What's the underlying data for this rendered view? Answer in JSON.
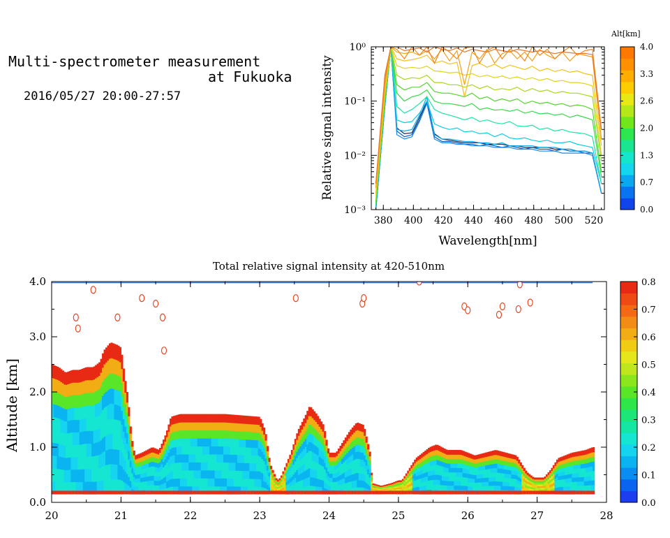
{
  "header": {
    "title_line1": "Multi-spectrometer measurement",
    "title_line2": "at Fukuoka",
    "date_range": "2016/05/27 20:00-27:57"
  },
  "chart_data": [
    {
      "type": "line",
      "xlabel": "Wavelength[nm]",
      "ylabel": "Relative signal intensity",
      "yscale": "log",
      "xlim": [
        372,
        527
      ],
      "ylim": [
        0.001,
        1
      ],
      "x_ticks": [
        "380",
        "400",
        "420",
        "440",
        "460",
        "480",
        "500",
        "520"
      ],
      "y_ticks": [
        "10⁻³",
        "10⁻²",
        "10⁻¹",
        "10⁰"
      ],
      "colorbar": {
        "label": "Alt[km]",
        "ticks": [
          "0.0",
          "0.7",
          "1.3",
          "2.0",
          "2.6",
          "3.3",
          "4.0"
        ],
        "colors": [
          "#1244ee",
          "#0a74f0",
          "#0aa8f0",
          "#14d6ee",
          "#14e6cc",
          "#18e690",
          "#2ee650",
          "#72e61c",
          "#b4e818",
          "#e8e812",
          "#ffcc00",
          "#ffae00",
          "#ff9000",
          "#ff7800"
        ]
      },
      "x": [
        375,
        381,
        385,
        389,
        394,
        399,
        404,
        409,
        414,
        419,
        424,
        429,
        434,
        439,
        444,
        449,
        454,
        459,
        464,
        469,
        474,
        479,
        484,
        489,
        494,
        499,
        504,
        509,
        514,
        519,
        525
      ],
      "series": [
        {
          "color": "#1a2a55",
          "values": [
            0.001,
            0.08,
            1.0,
            0.032,
            0.025,
            0.026,
            0.05,
            0.1,
            0.025,
            0.02,
            0.019,
            0.018,
            0.017,
            0.017,
            0.017,
            0.016,
            0.016,
            0.016,
            0.015,
            0.015,
            0.014,
            0.014,
            0.014,
            0.014,
            0.013,
            0.013,
            0.013,
            0.012,
            0.012,
            0.011,
            0.002
          ]
        },
        {
          "color": "#0b57c8",
          "values": [
            0.001,
            0.08,
            1.0,
            0.028,
            0.022,
            0.024,
            0.045,
            0.095,
            0.022,
            0.018,
            0.018,
            0.017,
            0.016,
            0.016,
            0.015,
            0.016,
            0.015,
            0.014,
            0.015,
            0.014,
            0.013,
            0.014,
            0.013,
            0.013,
            0.012,
            0.013,
            0.012,
            0.012,
            0.011,
            0.011,
            0.002
          ]
        },
        {
          "color": "#1e88e8",
          "values": [
            0.001,
            0.08,
            1.0,
            0.024,
            0.02,
            0.022,
            0.042,
            0.09,
            0.02,
            0.017,
            0.017,
            0.016,
            0.016,
            0.015,
            0.015,
            0.015,
            0.014,
            0.014,
            0.014,
            0.013,
            0.013,
            0.013,
            0.012,
            0.012,
            0.012,
            0.011,
            0.011,
            0.011,
            0.011,
            0.01,
            0.002
          ]
        },
        {
          "color": "#0aa8e8",
          "values": [
            0.001,
            0.08,
            1.0,
            0.03,
            0.028,
            0.03,
            0.055,
            0.12,
            0.024,
            0.02,
            0.02,
            0.019,
            0.018,
            0.018,
            0.017,
            0.017,
            0.016,
            0.017,
            0.015,
            0.015,
            0.015,
            0.015,
            0.014,
            0.014,
            0.014,
            0.013,
            0.013,
            0.012,
            0.012,
            0.011,
            0.002
          ]
        },
        {
          "color": "#14c8e6",
          "values": [
            0.0012,
            0.09,
            1.0,
            0.045,
            0.04,
            0.042,
            0.06,
            0.1,
            0.038,
            0.033,
            0.03,
            0.032,
            0.027,
            0.028,
            0.025,
            0.026,
            0.022,
            0.025,
            0.021,
            0.02,
            0.021,
            0.019,
            0.018,
            0.019,
            0.017,
            0.017,
            0.018,
            0.016,
            0.015,
            0.014,
            0.003
          ]
        },
        {
          "color": "#18e6a0",
          "values": [
            0.0012,
            0.09,
            1.0,
            0.08,
            0.06,
            0.07,
            0.09,
            0.12,
            0.07,
            0.06,
            0.055,
            0.05,
            0.045,
            0.05,
            0.042,
            0.045,
            0.04,
            0.038,
            0.042,
            0.035,
            0.034,
            0.036,
            0.03,
            0.032,
            0.028,
            0.03,
            0.027,
            0.026,
            0.025,
            0.022,
            0.003
          ]
        },
        {
          "color": "#3ad848",
          "values": [
            0.0013,
            0.1,
            1.0,
            0.14,
            0.1,
            0.12,
            0.13,
            0.16,
            0.1,
            0.09,
            0.09,
            0.085,
            0.08,
            0.09,
            0.07,
            0.075,
            0.068,
            0.07,
            0.065,
            0.07,
            0.06,
            0.065,
            0.058,
            0.06,
            0.055,
            0.058,
            0.05,
            0.055,
            0.05,
            0.045,
            0.004
          ]
        },
        {
          "color": "#52d62c",
          "values": [
            0.0014,
            0.1,
            1.0,
            0.2,
            0.16,
            0.18,
            0.18,
            0.22,
            0.15,
            0.14,
            0.14,
            0.13,
            0.12,
            0.14,
            0.11,
            0.12,
            0.1,
            0.11,
            0.1,
            0.11,
            0.09,
            0.1,
            0.09,
            0.095,
            0.085,
            0.09,
            0.08,
            0.085,
            0.08,
            0.07,
            0.005
          ]
        },
        {
          "color": "#a8d81a",
          "values": [
            0.0015,
            0.12,
            1.0,
            0.3,
            0.25,
            0.27,
            0.26,
            0.3,
            0.22,
            0.22,
            0.2,
            0.2,
            0.18,
            0.2,
            0.17,
            0.19,
            0.16,
            0.17,
            0.16,
            0.18,
            0.15,
            0.17,
            0.15,
            0.16,
            0.14,
            0.15,
            0.14,
            0.14,
            0.13,
            0.12,
            0.008
          ]
        },
        {
          "color": "#e0d41a",
          "values": [
            0.0018,
            0.14,
            1.0,
            0.45,
            0.4,
            0.42,
            0.4,
            0.44,
            0.36,
            0.35,
            0.33,
            0.34,
            0.3,
            0.32,
            0.28,
            0.3,
            0.27,
            0.29,
            0.26,
            0.28,
            0.25,
            0.27,
            0.24,
            0.26,
            0.23,
            0.24,
            0.22,
            0.22,
            0.21,
            0.19,
            0.01
          ]
        },
        {
          "color": "#f2c21a",
          "values": [
            0.002,
            0.16,
            1.0,
            0.6,
            0.55,
            0.58,
            0.62,
            0.7,
            0.5,
            0.55,
            0.48,
            0.52,
            0.12,
            0.45,
            0.5,
            0.42,
            0.48,
            0.4,
            0.46,
            0.42,
            0.38,
            0.44,
            0.36,
            0.4,
            0.35,
            0.38,
            0.34,
            0.36,
            0.32,
            0.3,
            0.015
          ]
        },
        {
          "color": "#f2a21a",
          "values": [
            0.0025,
            0.2,
            1.0,
            0.8,
            0.75,
            0.8,
            0.7,
            0.85,
            0.6,
            0.9,
            0.55,
            0.85,
            0.2,
            0.8,
            0.6,
            0.9,
            0.5,
            0.75,
            0.85,
            0.6,
            0.8,
            0.55,
            0.9,
            0.7,
            0.6,
            0.8,
            0.55,
            0.75,
            0.7,
            0.65,
            0.02
          ]
        },
        {
          "color": "#f0881c",
          "values": [
            0.003,
            0.25,
            1.0,
            0.9,
            0.6,
            1.0,
            0.7,
            1.0,
            0.5,
            1.0,
            0.8,
            0.6,
            0.95,
            1.0,
            0.5,
            0.85,
            1.0,
            0.6,
            0.9,
            0.8,
            0.55,
            1.0,
            0.7,
            0.9,
            0.6,
            0.8,
            1.0,
            0.7,
            0.85,
            0.9,
            0.03
          ]
        },
        {
          "color": "#e8782a",
          "values": [
            0.003,
            0.3,
            1.0,
            1.0,
            0.85,
            0.9,
            0.95,
            0.8,
            1.0,
            0.9,
            0.85,
            0.95,
            0.8,
            0.9,
            0.85,
            0.8,
            0.9,
            0.85,
            0.8,
            0.9,
            0.85,
            0.8,
            0.85,
            0.8,
            0.75,
            0.8,
            0.78,
            0.75,
            0.76,
            0.72,
            0.03
          ]
        }
      ]
    },
    {
      "type": "heatmap",
      "title": "Total relative signal intensity at 420-510nm",
      "ylabel": "Altitude [km]",
      "xlim": [
        20,
        28
      ],
      "ylim": [
        0,
        4
      ],
      "x_ticks": [
        "20",
        "21",
        "22",
        "23",
        "24",
        "25",
        "26",
        "27",
        "28"
      ],
      "y_ticks": [
        "0.0",
        "1.0",
        "2.0",
        "3.0",
        "4.0"
      ],
      "colorbar": {
        "ticks": [
          "0.0",
          "0.1",
          "0.2",
          "0.3",
          "0.4",
          "0.5",
          "0.6",
          "0.7",
          "0.8"
        ],
        "colors": [
          "#1c3ef0",
          "#0a64f0",
          "#0a8cf0",
          "#0ab4f0",
          "#14d4f0",
          "#14e6d2",
          "#14e6a4",
          "#1ce678",
          "#2ee64a",
          "#5ae628",
          "#8ce61c",
          "#c0e61c",
          "#e6e61c",
          "#f0cc14",
          "#f2ac14",
          "#f28c14",
          "#f26a14",
          "#f04a14",
          "#e82a14"
        ]
      },
      "layer_base_km": 0.15,
      "layer_top_km": [
        [
          20.0,
          2.5
        ],
        [
          20.1,
          2.45
        ],
        [
          20.2,
          2.35
        ],
        [
          20.3,
          2.4
        ],
        [
          20.4,
          2.4
        ],
        [
          20.5,
          2.45
        ],
        [
          20.6,
          2.45
        ],
        [
          20.7,
          2.55
        ],
        [
          20.75,
          2.75
        ],
        [
          20.85,
          2.9
        ],
        [
          20.95,
          2.85
        ],
        [
          21.0,
          2.8
        ],
        [
          21.05,
          2.3
        ],
        [
          21.1,
          1.9
        ],
        [
          21.15,
          1.2
        ],
        [
          21.2,
          0.85
        ],
        [
          21.3,
          0.9
        ],
        [
          21.45,
          1.0
        ],
        [
          21.55,
          0.95
        ],
        [
          21.65,
          1.25
        ],
        [
          21.72,
          1.55
        ],
        [
          21.85,
          1.6
        ],
        [
          22.5,
          1.6
        ],
        [
          23.0,
          1.55
        ],
        [
          23.08,
          1.3
        ],
        [
          23.15,
          0.7
        ],
        [
          23.25,
          0.4
        ],
        [
          23.3,
          0.45
        ],
        [
          23.45,
          0.9
        ],
        [
          23.55,
          1.3
        ],
        [
          23.65,
          1.55
        ],
        [
          23.72,
          1.75
        ],
        [
          23.82,
          1.6
        ],
        [
          23.92,
          1.4
        ],
        [
          24.0,
          0.9
        ],
        [
          24.1,
          0.9
        ],
        [
          24.2,
          1.1
        ],
        [
          24.3,
          1.3
        ],
        [
          24.4,
          1.45
        ],
        [
          24.5,
          1.4
        ],
        [
          24.6,
          0.85
        ],
        [
          24.62,
          0.35
        ],
        [
          24.75,
          0.3
        ],
        [
          24.9,
          0.35
        ],
        [
          25.0,
          0.4
        ],
        [
          25.05,
          0.4
        ],
        [
          25.15,
          0.6
        ],
        [
          25.25,
          0.8
        ],
        [
          25.45,
          1.0
        ],
        [
          25.55,
          1.05
        ],
        [
          25.7,
          0.95
        ],
        [
          25.9,
          0.95
        ],
        [
          26.1,
          0.85
        ],
        [
          26.4,
          0.95
        ],
        [
          26.7,
          0.85
        ],
        [
          26.85,
          0.55
        ],
        [
          26.95,
          0.45
        ],
        [
          27.1,
          0.45
        ],
        [
          27.2,
          0.6
        ],
        [
          27.3,
          0.8
        ],
        [
          27.5,
          0.9
        ],
        [
          27.7,
          0.95
        ],
        [
          27.8,
          1.0
        ]
      ],
      "layer_end_hour": 27.8,
      "core_value_range": [
        0.15,
        0.25
      ],
      "edge_value_range": [
        0.5,
        0.8
      ],
      "scattered_patches": [
        [
          20.35,
          3.35
        ],
        [
          20.38,
          3.15
        ],
        [
          20.6,
          3.85
        ],
        [
          20.95,
          3.35
        ],
        [
          21.3,
          3.7
        ],
        [
          21.5,
          3.6
        ],
        [
          21.6,
          3.35
        ],
        [
          21.62,
          2.75
        ],
        [
          23.52,
          3.7
        ],
        [
          24.48,
          3.6
        ],
        [
          24.5,
          3.7
        ],
        [
          25.3,
          4.0
        ],
        [
          25.95,
          3.55
        ],
        [
          26.0,
          3.48
        ],
        [
          26.45,
          3.4
        ],
        [
          26.5,
          3.55
        ],
        [
          26.73,
          3.5
        ],
        [
          26.75,
          3.95
        ],
        [
          26.9,
          3.62
        ]
      ]
    }
  ]
}
